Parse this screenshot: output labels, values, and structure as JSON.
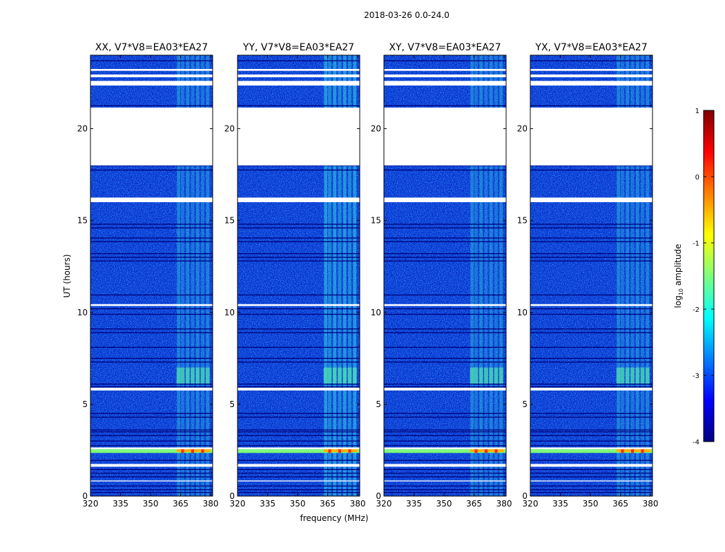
{
  "chart_data": {
    "type": "heatmap",
    "title": "2018-03-26 0.0-24.0",
    "xlabel": "frequency (MHz)",
    "ylabel": "UT (hours)",
    "xlim": [
      320,
      381
    ],
    "ylim": [
      0,
      24
    ],
    "xticks": [
      320,
      335,
      350,
      365,
      380
    ],
    "yticks": [
      0,
      5,
      10,
      15,
      20
    ],
    "panels": [
      {
        "title": "XX, V7*V8=EA03*EA27",
        "polarization": "XX"
      },
      {
        "title": "YY, V7*V8=EA03*EA27",
        "polarization": "YY"
      },
      {
        "title": "XY, V7*V8=EA03*EA27",
        "polarization": "XY"
      },
      {
        "title": "YX, V7*V8=EA03*EA27",
        "polarization": "YX"
      }
    ],
    "blank_ut_ranges": [
      [
        18.0,
        21.15
      ],
      [
        16.0,
        16.25
      ],
      [
        10.35,
        10.45
      ],
      [
        22.35,
        22.6
      ],
      [
        22.8,
        22.95
      ],
      [
        23.15,
        23.25
      ],
      [
        5.75,
        5.9
      ],
      [
        2.55,
        2.65
      ],
      [
        1.6,
        1.75
      ],
      [
        0.8,
        0.85
      ]
    ],
    "flag_ut_lines": [
      23.7,
      21.25,
      18.0,
      17.75,
      16.2,
      14.8,
      14.6,
      14.05,
      13.85,
      13.2,
      13.0,
      12.8,
      10.95,
      10.2,
      9.9,
      9.1,
      8.9,
      8.1,
      7.5,
      7.3,
      6.1,
      5.95,
      4.5,
      4.3,
      3.6,
      3.5,
      3.3,
      3.0,
      2.75,
      1.95,
      1.45,
      1.25,
      1.05,
      0.55,
      0.35,
      0.2
    ],
    "rfi_channels_mhz": [
      364,
      366,
      368.5,
      371,
      373.5,
      376,
      378.5
    ],
    "strong_rfi_ut_range": [
      2.35,
      2.55
    ],
    "colorbar": {
      "label": "log",
      "label_sub": "10",
      "label_suffix": " amplitude",
      "ticks": [
        1,
        0,
        -1,
        -2,
        -3,
        -4
      ],
      "range": [
        -4,
        1
      ],
      "colormap": "jet",
      "colors": [
        "#00007f",
        "#0000ff",
        "#007fff",
        "#00ffff",
        "#7fff7f",
        "#ffff00",
        "#ff7f00",
        "#ff0000",
        "#7f0000"
      ]
    }
  }
}
